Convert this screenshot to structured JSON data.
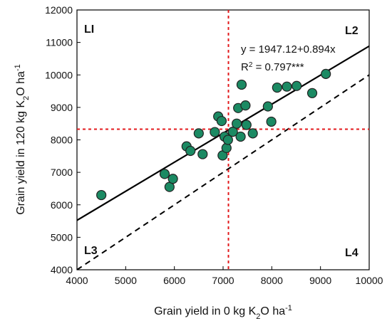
{
  "chart_data": {
    "type": "scatter",
    "xlabel_parts": [
      "Grain yield in 0 kg K",
      "2",
      "O ha",
      "-1"
    ],
    "ylabel_parts": [
      "Grain yield in 120 kg K",
      "2",
      "O ha",
      "-1"
    ],
    "xlim": [
      4000,
      10000
    ],
    "ylim": [
      4000,
      12000
    ],
    "x_ticks": [
      4000,
      5000,
      6000,
      7000,
      8000,
      9000,
      10000
    ],
    "y_ticks": [
      4000,
      5000,
      6000,
      7000,
      8000,
      9000,
      10000,
      11000,
      12000
    ],
    "x_tick_labels": [
      "4000",
      "5000",
      "6000",
      "7000",
      "8000",
      "9000",
      "10000"
    ],
    "y_tick_labels": [
      "4000",
      "5000",
      "6000",
      "7000",
      "8000",
      "9000",
      "10000",
      "11000",
      "12000"
    ],
    "points": [
      {
        "x": 4500,
        "y": 6300
      },
      {
        "x": 5800,
        "y": 6950
      },
      {
        "x": 5900,
        "y": 6550
      },
      {
        "x": 5970,
        "y": 6800
      },
      {
        "x": 6250,
        "y": 7800
      },
      {
        "x": 6330,
        "y": 7660
      },
      {
        "x": 6500,
        "y": 8200
      },
      {
        "x": 6580,
        "y": 7560
      },
      {
        "x": 6830,
        "y": 8240
      },
      {
        "x": 6900,
        "y": 8720
      },
      {
        "x": 6970,
        "y": 8580
      },
      {
        "x": 6990,
        "y": 7520
      },
      {
        "x": 7030,
        "y": 8100
      },
      {
        "x": 7070,
        "y": 7750
      },
      {
        "x": 7100,
        "y": 8000
      },
      {
        "x": 7200,
        "y": 8250
      },
      {
        "x": 7280,
        "y": 8500
      },
      {
        "x": 7310,
        "y": 8980
      },
      {
        "x": 7360,
        "y": 8100
      },
      {
        "x": 7380,
        "y": 9700
      },
      {
        "x": 7460,
        "y": 9060
      },
      {
        "x": 7480,
        "y": 8460
      },
      {
        "x": 7610,
        "y": 8200
      },
      {
        "x": 7920,
        "y": 9030
      },
      {
        "x": 7990,
        "y": 8560
      },
      {
        "x": 8110,
        "y": 9610
      },
      {
        "x": 8310,
        "y": 9640
      },
      {
        "x": 8510,
        "y": 9660
      },
      {
        "x": 8830,
        "y": 9440
      },
      {
        "x": 9110,
        "y": 10030
      }
    ],
    "regression": {
      "intercept": 1947.12,
      "slope": 0.894
    },
    "reference_line": {
      "slope": 1,
      "intercept": 0,
      "style": "dashed"
    },
    "mean_lines": {
      "x": 7110,
      "y": 8330,
      "color": "#e31a1c",
      "style": "dotted"
    },
    "equation_text": "y = 1947.12+0.894x",
    "r2_parts": [
      "R",
      "2",
      " = 0.797***"
    ],
    "quadrant_labels": {
      "L1": "LI",
      "L2": "L2",
      "L3": "L3",
      "L4": "L4"
    },
    "marker_color": "#1b8a63",
    "marker_edge": "#222222",
    "grid": false
  }
}
